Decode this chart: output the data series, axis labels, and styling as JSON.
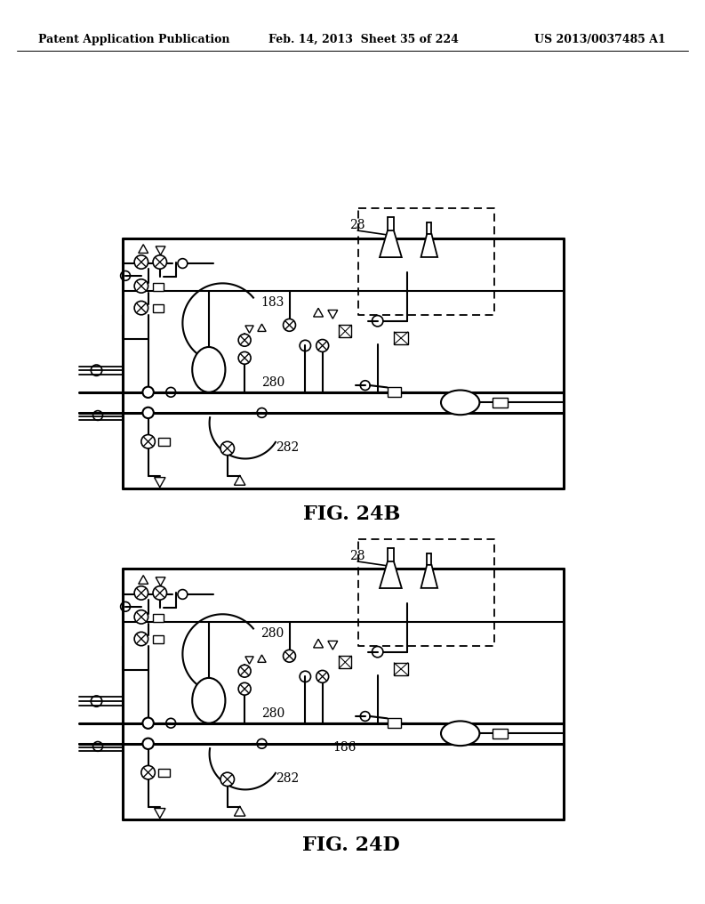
{
  "background_color": "#ffffff",
  "header_left": "Patent Application Publication",
  "header_mid": "Feb. 14, 2013  Sheet 35 of 224",
  "header_right": "US 2013/0037485 A1",
  "fig1_label": "FIG. 24B",
  "fig2_label": "FIG. 24D",
  "label_183": "183",
  "label_280_1": "280",
  "label_282_1": "282",
  "label_28_1": "28",
  "label_280_2": "280",
  "label_282_2": "282",
  "label_186": "186",
  "label_28_2": "28"
}
